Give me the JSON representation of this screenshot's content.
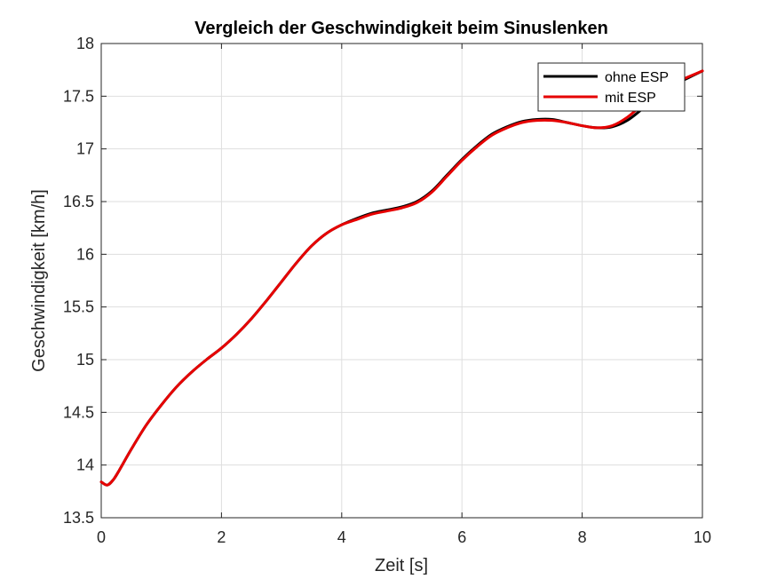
{
  "chart_data": {
    "type": "line",
    "title": "Vergleich der Geschwindigkeit beim Sinuslenken",
    "xlabel": "Zeit [s]",
    "ylabel": "Geschwindigkeit [km/h]",
    "xlim": [
      0,
      10
    ],
    "ylim": [
      13.5,
      18
    ],
    "xticks": [
      0,
      2,
      4,
      6,
      8,
      10
    ],
    "yticks": [
      13.5,
      14,
      14.5,
      15,
      15.5,
      16,
      16.5,
      17,
      17.5,
      18
    ],
    "grid": true,
    "legend_position": "top-right",
    "series": [
      {
        "name": "ohne ESP",
        "color": "#000000",
        "x": [
          0,
          0.1,
          0.2,
          0.3,
          0.5,
          0.75,
          1,
          1.25,
          1.5,
          1.75,
          2,
          2.25,
          2.5,
          2.75,
          3,
          3.25,
          3.5,
          3.75,
          4,
          4.25,
          4.5,
          4.75,
          5,
          5.25,
          5.5,
          5.75,
          6,
          6.25,
          6.5,
          6.75,
          7,
          7.25,
          7.5,
          7.75,
          8,
          8.25,
          8.5,
          8.75,
          9,
          9.25,
          9.5,
          9.75,
          10
        ],
        "y": [
          13.84,
          13.81,
          13.86,
          13.95,
          14.15,
          14.38,
          14.57,
          14.74,
          14.88,
          15.0,
          15.11,
          15.24,
          15.39,
          15.56,
          15.74,
          15.92,
          16.08,
          16.2,
          16.28,
          16.34,
          16.39,
          16.42,
          16.45,
          16.5,
          16.6,
          16.75,
          16.9,
          17.03,
          17.14,
          17.21,
          17.26,
          17.28,
          17.28,
          17.25,
          17.22,
          17.2,
          17.21,
          17.27,
          17.38,
          17.51,
          17.6,
          17.67,
          17.74
        ]
      },
      {
        "name": "mit ESP",
        "color": "#e60000",
        "x": [
          0,
          0.1,
          0.2,
          0.3,
          0.5,
          0.75,
          1,
          1.25,
          1.5,
          1.75,
          2,
          2.25,
          2.5,
          2.75,
          3,
          3.25,
          3.5,
          3.75,
          4,
          4.25,
          4.5,
          4.75,
          5,
          5.25,
          5.5,
          5.75,
          6,
          6.25,
          6.5,
          6.75,
          7,
          7.25,
          7.5,
          7.75,
          8,
          8.25,
          8.5,
          8.75,
          9,
          9.25,
          9.5,
          9.75,
          10
        ],
        "y": [
          13.84,
          13.81,
          13.86,
          13.95,
          14.15,
          14.38,
          14.57,
          14.74,
          14.88,
          15.0,
          15.11,
          15.24,
          15.39,
          15.56,
          15.74,
          15.92,
          16.08,
          16.2,
          16.28,
          16.33,
          16.38,
          16.41,
          16.44,
          16.49,
          16.59,
          16.74,
          16.89,
          17.02,
          17.13,
          17.2,
          17.25,
          17.27,
          17.27,
          17.25,
          17.22,
          17.2,
          17.22,
          17.3,
          17.42,
          17.54,
          17.62,
          17.68,
          17.74
        ]
      }
    ]
  }
}
